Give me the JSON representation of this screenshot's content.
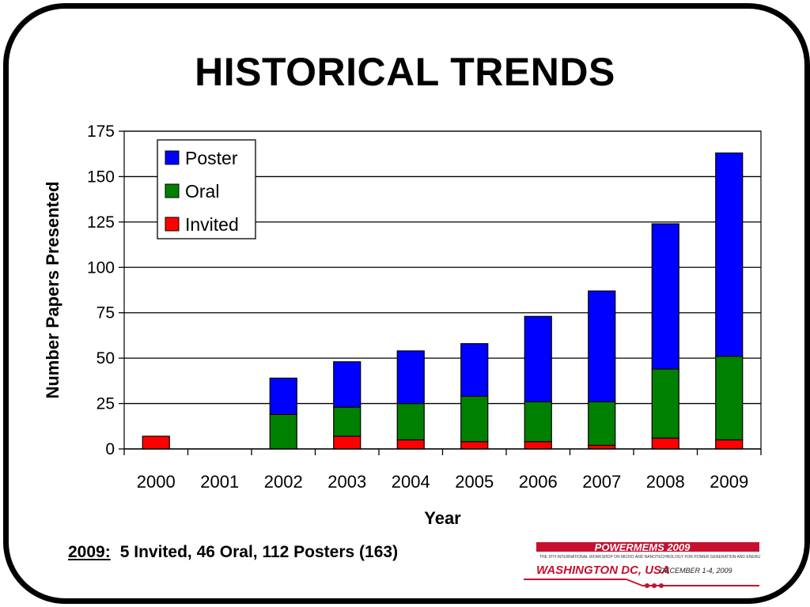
{
  "slide": {
    "title": "HISTORICAL TRENDS",
    "footnote_year": "2009:",
    "footnote_text": "5 Invited, 46 Oral, 112 Posters (163)",
    "logo_text_top": "POWERMEMS 2009",
    "logo_text_main": "WASHINGTON DC, USA",
    "logo_text_date": "DECEMBER 1-4, 2009"
  },
  "chart_data": {
    "type": "bar",
    "stacked": true,
    "categories": [
      "2000",
      "2001",
      "2002",
      "2003",
      "2004",
      "2005",
      "2006",
      "2007",
      "2008",
      "2009"
    ],
    "series": [
      {
        "name": "Invited",
        "color": "#ff0000",
        "values": [
          7,
          0,
          0,
          7,
          5,
          4,
          4,
          2,
          6,
          5
        ]
      },
      {
        "name": "Oral",
        "color": "#008000",
        "values": [
          0,
          0,
          19,
          16,
          20,
          25,
          22,
          24,
          38,
          46
        ]
      },
      {
        "name": "Poster",
        "color": "#0000ff",
        "values": [
          0,
          0,
          20,
          25,
          29,
          29,
          47,
          61,
          80,
          112
        ]
      }
    ],
    "legend_order": [
      "Poster",
      "Oral",
      "Invited"
    ],
    "legend_position": "top-left",
    "xlabel": "Year",
    "ylabel": "Number Papers Presented",
    "ylim": [
      0,
      175
    ],
    "yticks": [
      0,
      25,
      50,
      75,
      100,
      125,
      150,
      175
    ],
    "grid": true
  }
}
